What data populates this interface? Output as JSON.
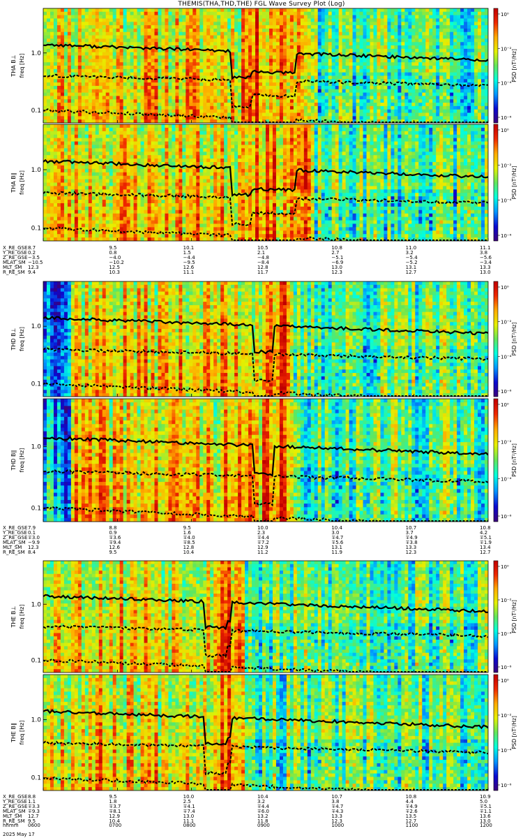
{
  "title": "THEMIS(THA,THD,THE) FGL Wave Survey Plot (Log)",
  "colorbar": {
    "label": "PSD [nT²/Hz]",
    "ticks": [
      "10⁰",
      "10⁻²",
      "10⁻⁴",
      "10⁻⁶"
    ],
    "colors": [
      "#3c007a",
      "#0a0ad2",
      "#0096ff",
      "#00ffe0",
      "#63e65a",
      "#e6f000",
      "#ffaa00",
      "#f02800",
      "#c00000"
    ]
  },
  "chart_data": {
    "type": "heatmap",
    "xlabel": "hhmm",
    "ylabel": "freq [Hz]",
    "yscale": "log",
    "ylim": [
      0.06,
      6.0
    ],
    "y_ticks": [
      "0.1",
      "1.0"
    ],
    "time_ticks": [
      "0600",
      "0700",
      "0800",
      "0900",
      "1000",
      "1100",
      "1200"
    ],
    "date_label": "2025 May 17",
    "panels": [
      {
        "probe": "THA",
        "component": "B⊥",
        "ylabel": "THA B⊥\nfreq [Hz]",
        "seed": 11,
        "burst": [
          0.44,
          0.6
        ],
        "quiet": [
          0.5,
          1.0
        ]
      },
      {
        "probe": "THA",
        "component": "B∥",
        "ylabel": "THA B∥\nfreq [Hz]",
        "seed": 23,
        "burst": [
          0.44,
          0.6
        ],
        "quiet": [
          0.5,
          1.0
        ]
      },
      {
        "probe": "THD",
        "component": "B⊥",
        "ylabel": "THD B⊥\nfreq [Hz]",
        "seed": 37,
        "burst": [
          0.49,
          0.54
        ],
        "quiet": [
          0.55,
          1.0
        ]
      },
      {
        "probe": "THD",
        "component": "B∥",
        "ylabel": "THD B∥\nfreq [Hz]",
        "seed": 41,
        "burst": [
          0.49,
          0.54
        ],
        "quiet": [
          0.55,
          1.0
        ]
      },
      {
        "probe": "THE",
        "component": "B⊥",
        "ylabel": "THE B⊥\nfreq [Hz]",
        "seed": 53,
        "burst": [
          0.38,
          0.45
        ],
        "quiet": [
          0.45,
          1.0
        ]
      },
      {
        "probe": "THE",
        "component": "B∥",
        "ylabel": "THE B∥\nfreq [Hz]",
        "seed": 67,
        "burst": [
          0.38,
          0.45
        ],
        "quiet": [
          0.45,
          1.0
        ]
      }
    ],
    "ephemeris": [
      {
        "probe": "THA",
        "labels": [
          "X_RE_GSE",
          "Y_RE_GSE",
          "Z_RE_GSE",
          "MLAT_SM",
          "MLT_SM",
          "R_RE_SM"
        ],
        "columns": [
          [
            "8.7",
            "0.2",
            "−3.5",
            "−10.5",
            "12.3",
            "9.4"
          ],
          [
            "9.5",
            "0.8",
            "−4.0",
            "−10.2",
            "12.5",
            "10.3"
          ],
          [
            "10.1",
            "1.5",
            "−4.4",
            "−9.5",
            "12.6",
            "11.1"
          ],
          [
            "10.5",
            "2.1",
            "−4.8",
            "−8.4",
            "12.8",
            "11.7"
          ],
          [
            "10.8",
            "2.7",
            "−5.1",
            "−6.9",
            "13.0",
            "12.3"
          ],
          [
            "11.0",
            "3.2",
            "−5.4",
            "−5.2",
            "13.1",
            "12.7"
          ],
          [
            "11.1",
            "3.8",
            "−5.6",
            "−3.4",
            "13.3",
            "13.0"
          ]
        ]
      },
      {
        "probe": "THD",
        "labels": [
          "X_RE_GSE",
          "Y_RE_GSE",
          "Z_RE_GSE",
          "MLAT_SM",
          "MLT_SM",
          "R_RE_SM"
        ],
        "columns": [
          [
            "7.9",
            "0.1",
            "∓3.0",
            "−9.9",
            "12.3",
            "8.4"
          ],
          [
            "8.8",
            "0.9",
            "∓3.6",
            "∓9.4",
            "12.6",
            "9.5"
          ],
          [
            "9.5",
            "1.6",
            "∓4.0",
            "∓8.5",
            "12.8",
            "10.4"
          ],
          [
            "10.0",
            "2.3",
            "∓4.4",
            "∓7.2",
            "12.9",
            "11.2"
          ],
          [
            "10.4",
            "3.0",
            "∓4.7",
            "∓5.6",
            "13.1",
            "11.9"
          ],
          [
            "10.7",
            "3.7",
            "∓4.9",
            "∓3.8",
            "13.3",
            "12.3"
          ],
          [
            "10.8",
            "4.2",
            "∓5.1",
            "∓1.9",
            "13.4",
            "12.7"
          ]
        ]
      },
      {
        "probe": "THE",
        "labels": [
          "X_RE_GSE",
          "Y_RE_GSE",
          "Z_RE_GSE",
          "MLAT_SM",
          "MLT_SM",
          "R_RE_SM",
          "hhmm"
        ],
        "columns": [
          [
            "8.8",
            "1.1",
            "∓3.3",
            "∓9.3",
            "12.7",
            "9.5",
            "0600"
          ],
          [
            "9.5",
            "1.8",
            "∓3.7",
            "∓8.1",
            "12.9",
            "10.4",
            "0700"
          ],
          [
            "10.0",
            "2.5",
            "∓4.1",
            "∓7.4",
            "13.0",
            "11.1",
            "0800"
          ],
          [
            "10.4",
            "3.2",
            "∓4.4",
            "∓6.0",
            "13.2",
            "11.8",
            "0900"
          ],
          [
            "10.7",
            "3.8",
            "∓4.7",
            "∓4.3",
            "13.3",
            "12.3",
            "1000"
          ],
          [
            "10.8",
            "4.4",
            "∓4.9",
            "∓2.6",
            "13.5",
            "12.7",
            "1100"
          ],
          [
            "10.9",
            "5.0",
            "∓5.1",
            "∓1.1",
            "13.6",
            "13.0",
            "1200"
          ]
        ]
      }
    ]
  }
}
